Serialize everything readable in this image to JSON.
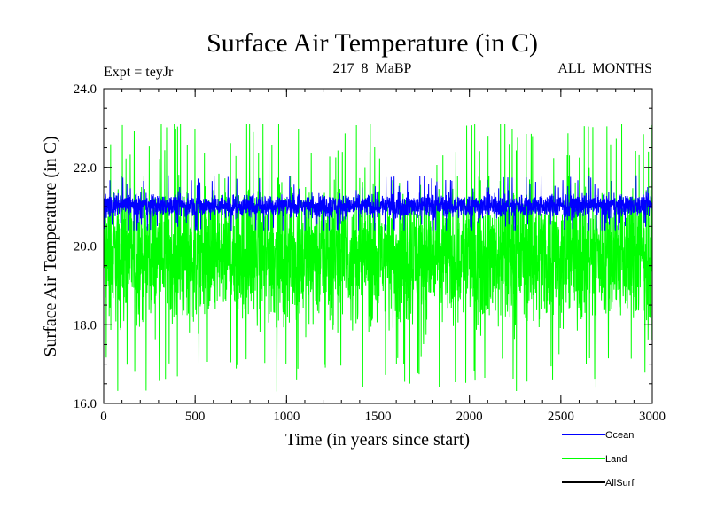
{
  "chart_data": {
    "type": "line",
    "title": "Surface Air Temperature (in C)",
    "expt_label": "Expt = teyJr",
    "subtitle": "217_8_MaBP",
    "months_label": "ALL_MONTHS",
    "xlabel": "Time (in years since start)",
    "ylabel": "Surface Air Temperature (in C)",
    "xlim": [
      0,
      3000
    ],
    "ylim": [
      16.0,
      24.0
    ],
    "x_ticks": [
      0,
      500,
      1000,
      1500,
      2000,
      2500,
      3000
    ],
    "x_tick_labels": [
      "0",
      "500",
      "1000",
      "1500",
      "2000",
      "2500",
      "3000"
    ],
    "y_ticks": [
      16.0,
      18.0,
      20.0,
      22.0,
      24.0
    ],
    "y_tick_labels": [
      "16.0",
      "18.0",
      "20.0",
      "22.0",
      "24.0"
    ],
    "x_minor_step": 100,
    "y_minor_step": 0.5,
    "grid": false,
    "legend_position": "bottom-right",
    "series": [
      {
        "name": "Land",
        "legend_label": "Land",
        "color": "#00ff00",
        "mean": 19.8,
        "band_low": 17.3,
        "band_high": 22.2,
        "min": 16.3,
        "max": 23.1,
        "n_points": 3000
      },
      {
        "name": "Ocean",
        "legend_label": "Ocean",
        "color": "#0000ff",
        "mean": 21.0,
        "band_low": 20.6,
        "band_high": 21.45,
        "min": 20.4,
        "max": 21.8,
        "n_points": 3000
      },
      {
        "name": "AllSurf",
        "legend_label": "AllSurf",
        "color": "#000000",
        "n_points": 0
      }
    ]
  }
}
